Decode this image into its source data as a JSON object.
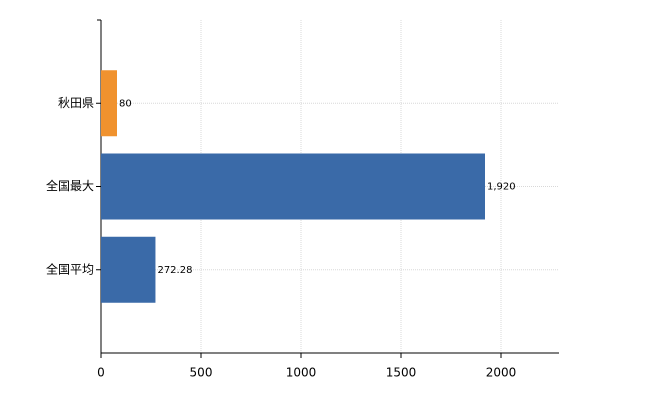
{
  "chart_data": {
    "type": "bar",
    "orientation": "horizontal",
    "categories": [
      "秋田県",
      "全国最大",
      "全国平均"
    ],
    "values": [
      80,
      1920,
      272.28
    ],
    "value_labels": [
      "80",
      "1,920",
      "272.28"
    ],
    "colors": [
      "#f0922e",
      "#3a6aa8",
      "#3a6aa8"
    ],
    "xlim": [
      0,
      2290
    ],
    "xticks": [
      0,
      500,
      1000,
      1500,
      2000
    ],
    "grid": true
  }
}
